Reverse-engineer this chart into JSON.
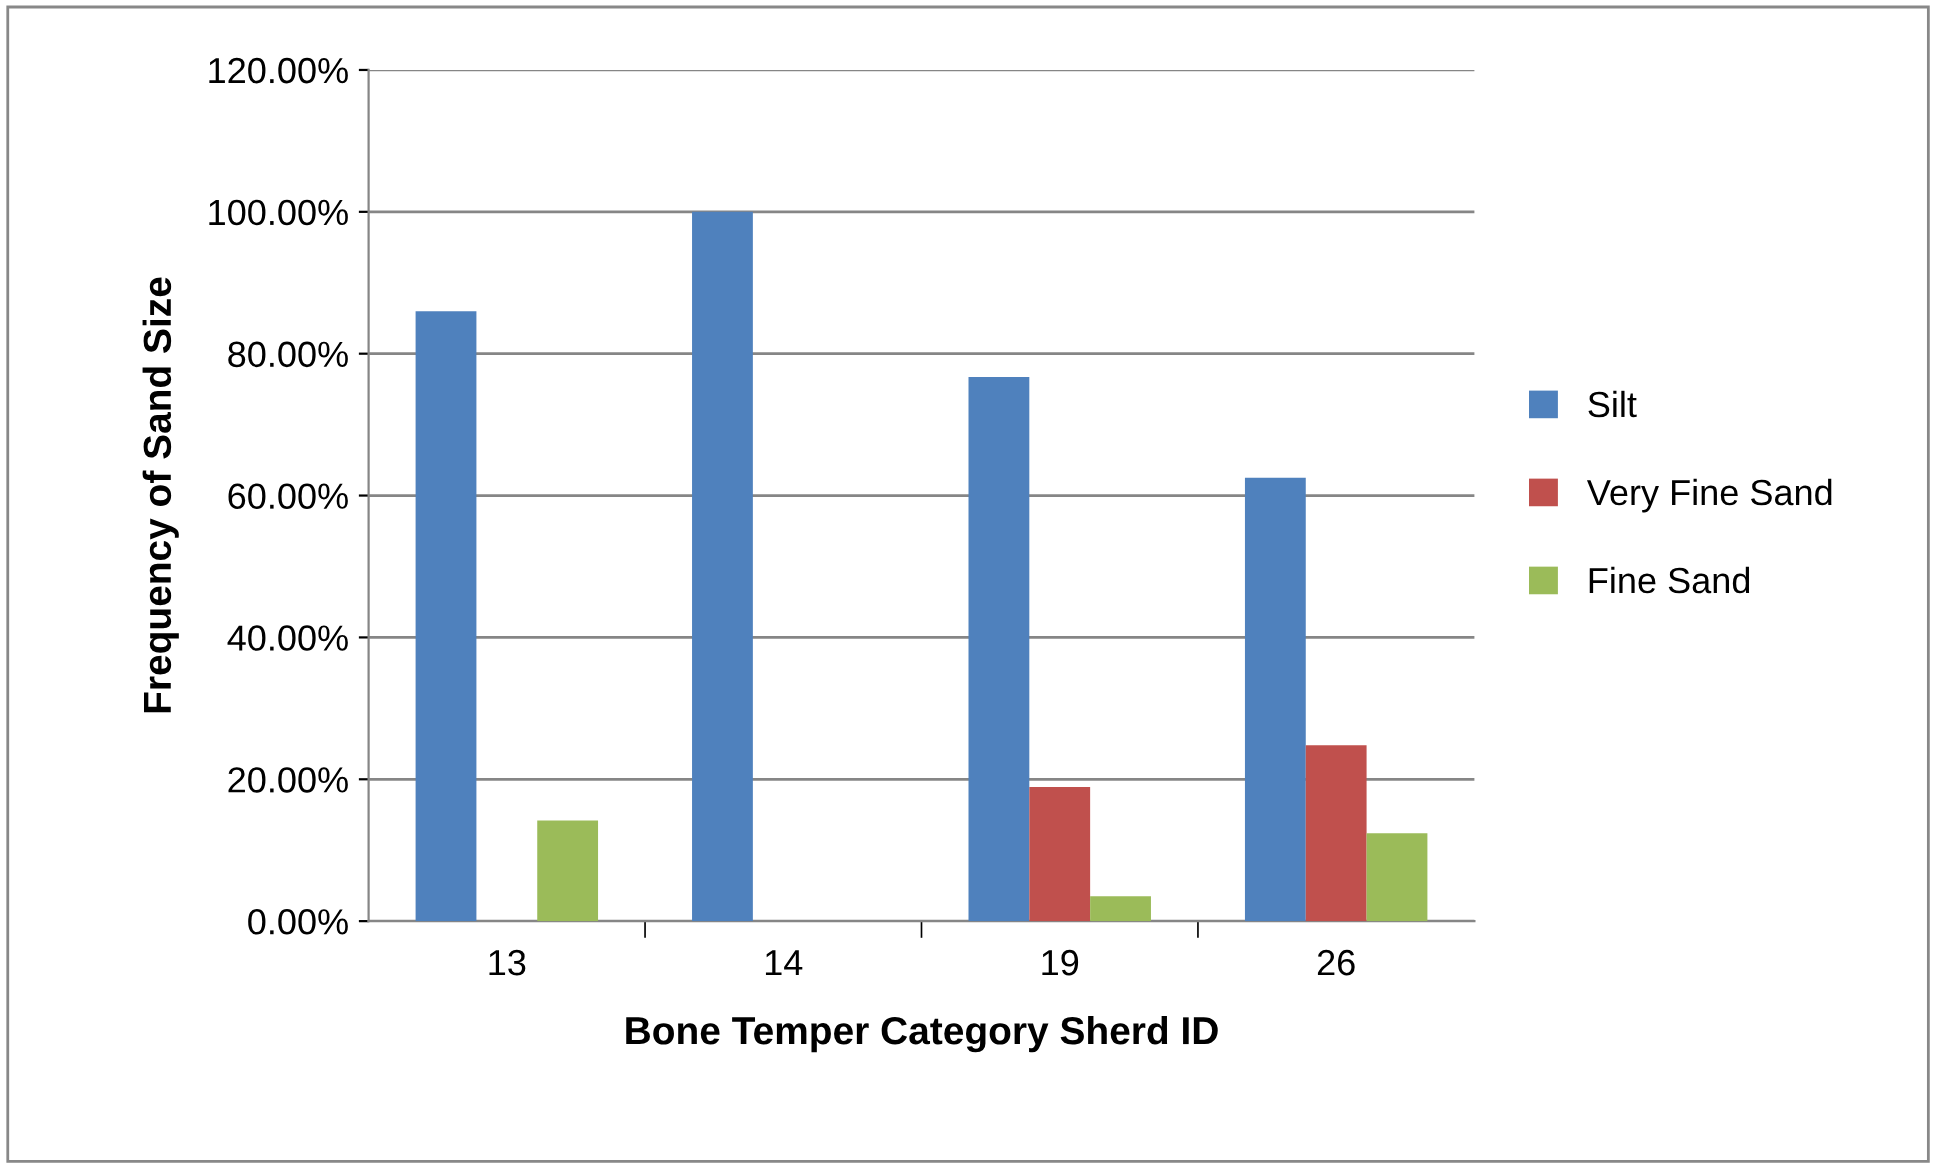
{
  "chart_data": {
    "type": "bar",
    "xlabel": "Bone Temper Category Sherd ID",
    "ylabel": "Frequency of Sand Size",
    "categories": [
      "13",
      "14",
      "19",
      "26"
    ],
    "series": [
      {
        "name": "Silt",
        "color": "#4f81bd",
        "values": [
          86,
          100,
          76.7,
          62.5
        ]
      },
      {
        "name": "Very Fine Sand",
        "color": "#c0504d",
        "values": [
          0,
          0,
          18.9,
          24.8
        ]
      },
      {
        "name": "Fine Sand",
        "color": "#9bbb59",
        "values": [
          14.2,
          0,
          3.5,
          12.4
        ]
      }
    ],
    "ylim": [
      0,
      120
    ],
    "yticks": [
      {
        "value": 0,
        "label": "0.00%"
      },
      {
        "value": 20,
        "label": "20.00%"
      },
      {
        "value": 40,
        "label": "40.00%"
      },
      {
        "value": 60,
        "label": "60.00%"
      },
      {
        "value": 80,
        "label": "80.00%"
      },
      {
        "value": 100,
        "label": "100.00%"
      },
      {
        "value": 120,
        "label": "120.00%"
      }
    ],
    "grid": "y",
    "legend": "right"
  }
}
